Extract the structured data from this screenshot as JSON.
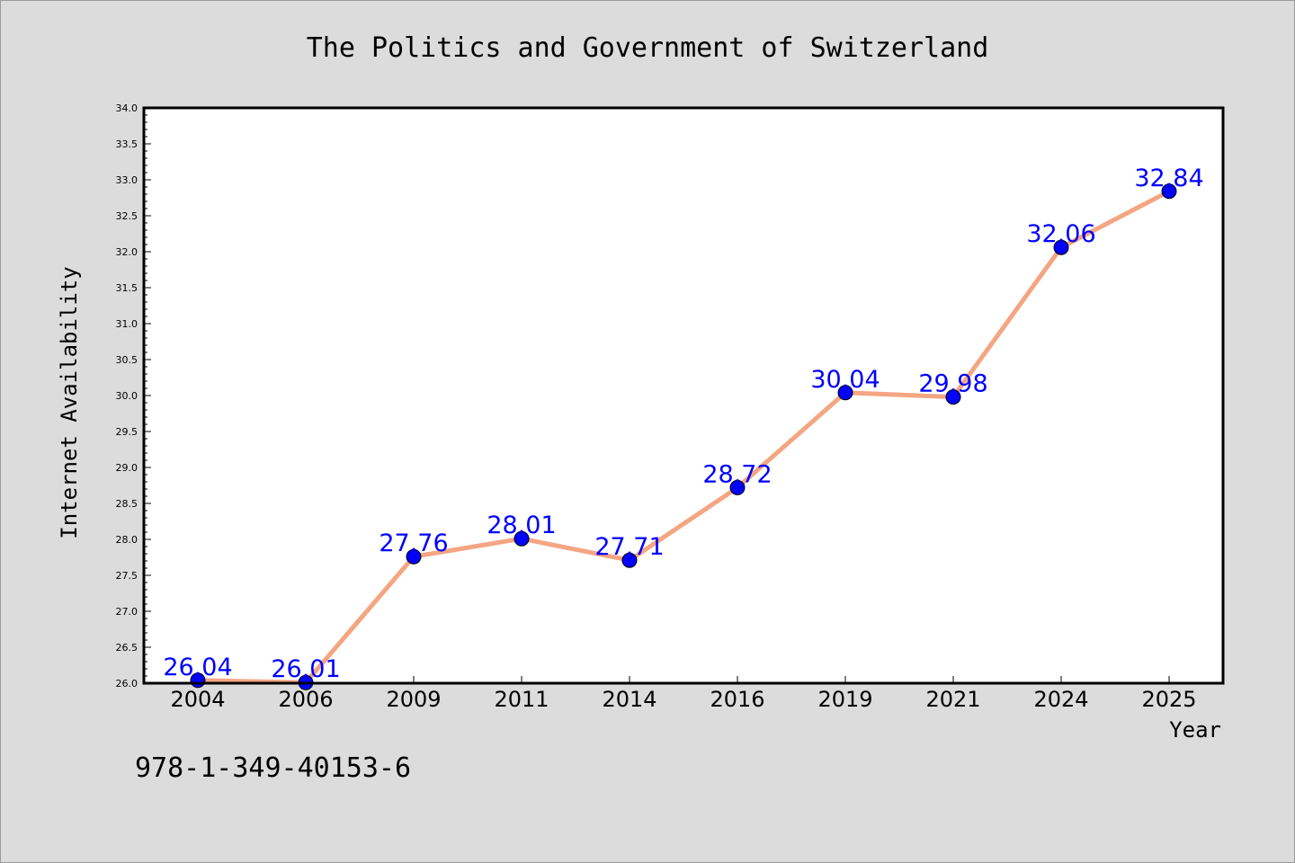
{
  "chart_data": {
    "type": "line",
    "title": "The Politics and Government of Switzerland",
    "xlabel": "Year",
    "ylabel": "Internet Availability",
    "categories": [
      "2004",
      "2006",
      "2009",
      "2011",
      "2014",
      "2016",
      "2019",
      "2021",
      "2024",
      "2025"
    ],
    "series": [
      {
        "values": [
          26.04,
          26.01,
          27.76,
          28.01,
          27.71,
          28.72,
          30.04,
          29.98,
          32.06,
          32.84
        ],
        "data_labels": [
          "26.04",
          "26.01",
          "27.76",
          "28.01",
          "27.71",
          "28.72",
          "30.04",
          "29.98",
          "32.06",
          "32.84"
        ],
        "line_color": "#f4a582",
        "marker_color": "#0000ff"
      }
    ],
    "ylim": [
      26.0,
      34.0
    ],
    "yticks": [
      "26.0",
      "26.5",
      "27.0",
      "27.5",
      "28.0",
      "28.5",
      "29.0",
      "29.5",
      "30.0",
      "30.5",
      "31.0",
      "31.5",
      "32.0",
      "32.5",
      "33.0",
      "33.5",
      "34.0"
    ],
    "grid": false,
    "legend": "none",
    "label_color": "#0000ff",
    "background_color": "#dcdcdc",
    "plot_background_color": "#ffffff"
  },
  "footer": {
    "isbn": "978-1-349-40153-6"
  }
}
